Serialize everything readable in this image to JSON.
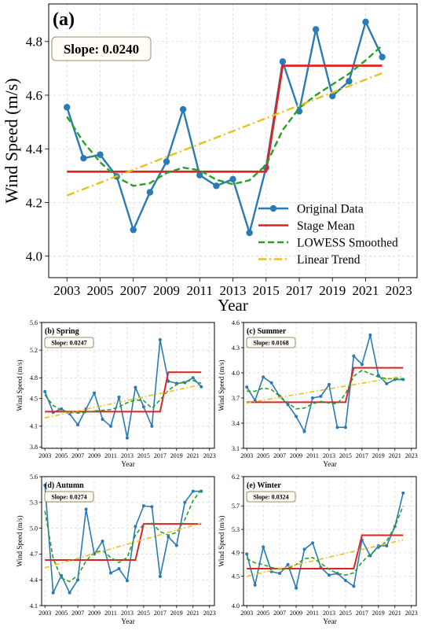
{
  "colors": {
    "original": "#2a7ab5",
    "stage": "#dc2424",
    "lowess": "#28a028",
    "trend": "#e8c21a",
    "slope_text": "#8b7a10",
    "slope_border": "#9a8f6a",
    "slope_fill": "#fffdf5",
    "grid": "#d9d9d9"
  },
  "xlabel": "Year",
  "x_ticks": [
    "2003",
    "2005",
    "2007",
    "2009",
    "2011",
    "2013",
    "2015",
    "2017",
    "2019",
    "2021",
    "2023"
  ],
  "legend": {
    "original": "Original Data",
    "stage": "Stage Mean",
    "lowess": "LOWESS Smoothed",
    "trend": "Linear Trend"
  },
  "chart_data": [
    {
      "type": "line",
      "panel": "(a)",
      "ylabel": "Wind Speed (m/s)",
      "slope_label": "Slope: 0.0240",
      "xlim": [
        2001.9,
        2024.1
      ],
      "ylim": [
        3.92,
        4.94
      ],
      "y_ticks": [
        "4.0",
        "4.2",
        "4.4",
        "4.6",
        "4.8"
      ],
      "x": [
        2003,
        2004,
        2005,
        2006,
        2007,
        2008,
        2009,
        2010,
        2011,
        2012,
        2013,
        2014,
        2015,
        2016,
        2017,
        2018,
        2019,
        2020,
        2021,
        2022
      ],
      "series": [
        {
          "name": "Original Data",
          "values": [
            4.555,
            4.365,
            4.378,
            4.297,
            4.098,
            4.238,
            4.352,
            4.547,
            4.302,
            4.262,
            4.287,
            4.087,
            4.33,
            4.725,
            4.54,
            4.845,
            4.597,
            4.652,
            4.873,
            4.742
          ]
        },
        {
          "name": "Stage Mean",
          "segments": [
            {
              "x0": 2003,
              "x1": 2015,
              "y": 4.315
            },
            {
              "x0": 2016,
              "x1": 2022,
              "y": 4.71
            }
          ]
        },
        {
          "name": "LOWESS Smoothed",
          "values": [
            4.52,
            4.425,
            4.35,
            4.295,
            4.262,
            4.272,
            4.31,
            4.33,
            4.32,
            4.285,
            4.268,
            4.283,
            4.34,
            4.47,
            4.552,
            4.6,
            4.64,
            4.68,
            4.73,
            4.785
          ]
        },
        {
          "name": "Linear Trend",
          "x": [
            2003,
            2022
          ],
          "values": [
            4.226,
            4.682
          ]
        }
      ]
    },
    {
      "type": "line",
      "panel": "(b) Spring",
      "ylabel": "Wind Speed (m/s)",
      "slope_label": "Slope: 0.0247",
      "xlim": [
        2002.6,
        2023.6
      ],
      "ylim": [
        3.78,
        5.6
      ],
      "y_ticks": [
        "3.8",
        "4.1",
        "4.5",
        "4.8",
        "5.2",
        "5.6"
      ],
      "x": [
        2003,
        2004,
        2005,
        2006,
        2007,
        2008,
        2009,
        2010,
        2011,
        2012,
        2013,
        2014,
        2015,
        2016,
        2017,
        2018,
        2019,
        2020,
        2021,
        2022
      ],
      "series": [
        {
          "name": "Original Data",
          "values": [
            4.6,
            4.3,
            4.35,
            4.28,
            4.12,
            4.35,
            4.58,
            4.2,
            4.1,
            4.52,
            3.93,
            4.66,
            4.38,
            4.1,
            5.35,
            4.75,
            4.72,
            4.73,
            4.8,
            4.67
          ]
        },
        {
          "name": "Stage Mean",
          "segments": [
            {
              "x0": 2003,
              "x1": 2017,
              "y": 4.31
            },
            {
              "x0": 2018,
              "x1": 2022,
              "y": 4.88
            }
          ]
        },
        {
          "name": "LOWESS Smoothed",
          "values": [
            4.55,
            4.4,
            4.33,
            4.3,
            4.29,
            4.3,
            4.32,
            4.33,
            4.34,
            4.38,
            4.44,
            4.48,
            4.47,
            4.36,
            4.48,
            4.62,
            4.7,
            4.75,
            4.76,
            4.72
          ]
        },
        {
          "name": "Linear Trend",
          "x": [
            2003,
            2022
          ],
          "values": [
            4.22,
            4.7
          ]
        }
      ]
    },
    {
      "type": "line",
      "panel": "(c) Summer",
      "ylabel": "Wind Speed (m/s)",
      "slope_label": "Slope: 0.0168",
      "xlim": [
        2002.6,
        2023.6
      ],
      "ylim": [
        3.1,
        4.6
      ],
      "y_ticks": [
        "3.1",
        "3.4",
        "3.7",
        "4.0",
        "4.3",
        "4.6"
      ],
      "x": [
        2003,
        2004,
        2005,
        2006,
        2007,
        2008,
        2009,
        2010,
        2011,
        2012,
        2013,
        2014,
        2015,
        2016,
        2017,
        2018,
        2019,
        2020,
        2021,
        2022
      ],
      "series": [
        {
          "name": "Original Data",
          "values": [
            3.83,
            3.67,
            3.95,
            3.88,
            3.72,
            3.62,
            3.48,
            3.3,
            3.7,
            3.72,
            3.86,
            3.35,
            3.35,
            4.2,
            4.1,
            4.45,
            3.97,
            3.87,
            3.92,
            3.92
          ]
        },
        {
          "name": "Stage Mean",
          "segments": [
            {
              "x0": 2003,
              "x1": 2015,
              "y": 3.65
            },
            {
              "x0": 2016,
              "x1": 2022,
              "y": 4.06
            }
          ]
        },
        {
          "name": "LOWESS Smoothed",
          "values": [
            3.78,
            3.78,
            3.82,
            3.8,
            3.72,
            3.64,
            3.57,
            3.58,
            3.63,
            3.66,
            3.64,
            3.63,
            3.75,
            3.96,
            4.03,
            3.99,
            3.95,
            3.93,
            3.93,
            3.93
          ]
        },
        {
          "name": "Linear Trend",
          "x": [
            2003,
            2022
          ],
          "values": [
            3.64,
            3.96
          ]
        }
      ]
    },
    {
      "type": "line",
      "panel": "(d) Autumn",
      "ylabel": "Wind Speed (m/s)",
      "slope_label": "Slope: 0.0274",
      "xlim": [
        2002.6,
        2023.6
      ],
      "ylim": [
        4.1,
        5.6
      ],
      "y_ticks": [
        "4.1",
        "4.4",
        "4.7",
        "5.0",
        "5.3",
        "5.6"
      ],
      "x": [
        2003,
        2004,
        2005,
        2006,
        2007,
        2008,
        2009,
        2010,
        2011,
        2012,
        2013,
        2014,
        2015,
        2016,
        2017,
        2018,
        2019,
        2020,
        2021,
        2022
      ],
      "series": [
        {
          "name": "Original Data",
          "values": [
            5.5,
            4.25,
            4.45,
            4.25,
            4.4,
            5.22,
            4.7,
            4.85,
            4.48,
            4.53,
            4.39,
            5.02,
            5.26,
            5.25,
            4.44,
            4.9,
            4.8,
            5.3,
            5.43,
            5.43
          ]
        },
        {
          "name": "Stage Mean",
          "segments": [
            {
              "x0": 2003,
              "x1": 2014,
              "y": 4.63
            },
            {
              "x0": 2015,
              "x1": 2022,
              "y": 5.05
            }
          ]
        },
        {
          "name": "LOWESS Smoothed",
          "values": [
            5.2,
            4.65,
            4.42,
            4.38,
            4.45,
            4.62,
            4.72,
            4.74,
            4.66,
            4.6,
            4.66,
            4.92,
            5.05,
            5.06,
            4.96,
            4.92,
            4.95,
            5.1,
            5.32,
            5.45
          ]
        },
        {
          "name": "Linear Trend",
          "x": [
            2003,
            2022
          ],
          "values": [
            4.54,
            5.06
          ]
        }
      ]
    },
    {
      "type": "line",
      "panel": "(e) Winter",
      "ylabel": "Wind Speed (m/s)",
      "slope_label": "Slope: 0.0324",
      "xlim": [
        2002.6,
        2023.6
      ],
      "ylim": [
        4.0,
        6.2
      ],
      "y_ticks": [
        "4.0",
        "4.5",
        "4.9",
        "5.3",
        "5.7",
        "6.2"
      ],
      "x": [
        2003,
        2004,
        2005,
        2006,
        2007,
        2008,
        2009,
        2010,
        2011,
        2012,
        2013,
        2014,
        2015,
        2016,
        2017,
        2018,
        2019,
        2020,
        2021,
        2022
      ],
      "series": [
        {
          "name": "Original Data",
          "values": [
            4.88,
            4.35,
            5.0,
            4.58,
            4.55,
            4.7,
            4.3,
            4.96,
            5.07,
            4.65,
            4.52,
            4.55,
            4.43,
            4.33,
            5.12,
            4.85,
            5.02,
            5.02,
            5.35,
            5.92
          ]
        },
        {
          "name": "Stage Mean",
          "segments": [
            {
              "x0": 2003,
              "x1": 2016,
              "y": 4.63
            },
            {
              "x0": 2017,
              "x1": 2022,
              "y": 5.2
            }
          ]
        },
        {
          "name": "LOWESS Smoothed",
          "values": [
            4.8,
            4.73,
            4.7,
            4.65,
            4.62,
            4.63,
            4.7,
            4.8,
            4.82,
            4.72,
            4.62,
            4.55,
            4.52,
            4.56,
            4.74,
            4.88,
            4.98,
            5.1,
            5.35,
            5.7
          ]
        },
        {
          "name": "Linear Trend",
          "x": [
            2003,
            2022
          ],
          "values": [
            4.5,
            5.12
          ]
        }
      ]
    }
  ]
}
